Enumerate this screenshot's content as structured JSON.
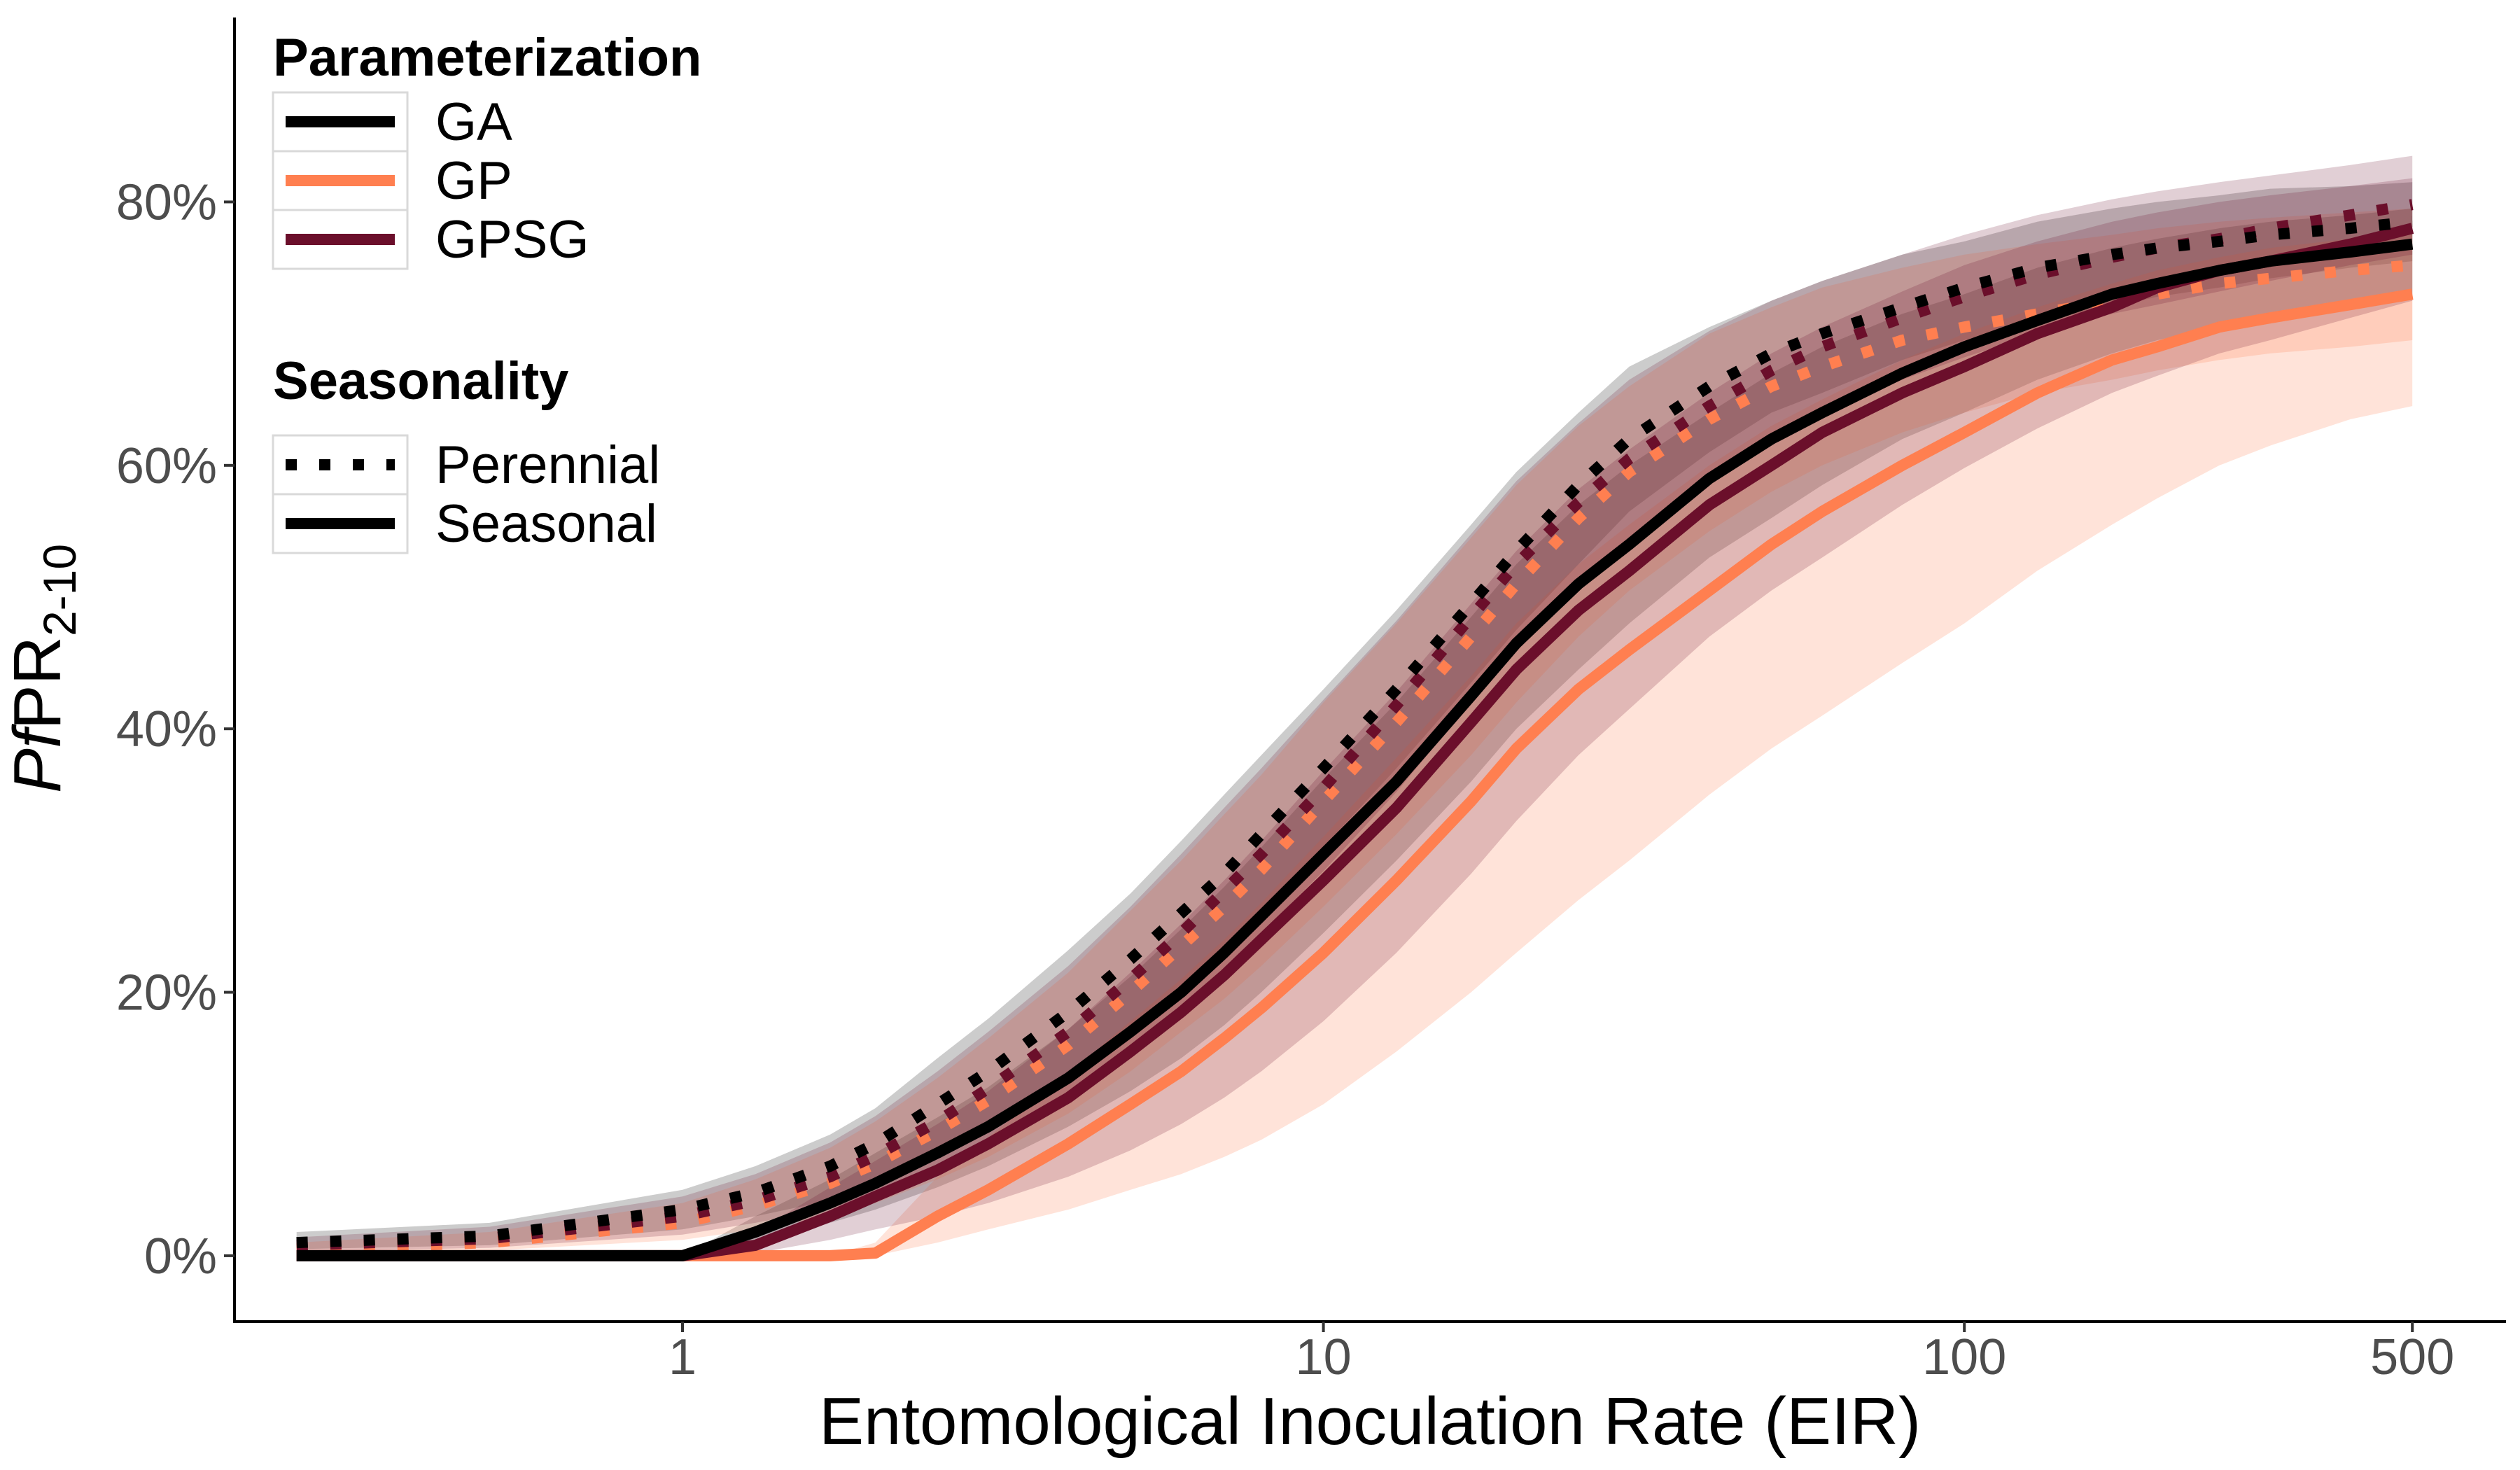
{
  "chart_data": {
    "type": "line",
    "xlabel": "Entomological Inoculation Rate (EIR)",
    "ylabel": {
      "prefix": "Pf",
      "main": "PR",
      "subscript": "2-10"
    },
    "x_scale": "log",
    "xlim": [
      0.2,
      700
    ],
    "ylim": [
      -0.05,
      0.94
    ],
    "x_ticks": [
      1,
      10,
      100,
      500
    ],
    "x_tick_labels": [
      "1",
      "10",
      "100",
      "500"
    ],
    "y_ticks": [
      0,
      0.2,
      0.4,
      0.6,
      0.8
    ],
    "y_tick_labels": [
      "0%",
      "20%",
      "40%",
      "60%",
      "80%"
    ],
    "grid": false,
    "legend_position": "top-left",
    "legends": [
      {
        "title": "Parameterization",
        "entries": [
          "GA",
          "GP",
          "GPSG"
        ]
      },
      {
        "title": "Seasonality",
        "entries": [
          "Perennial",
          "Seasonal"
        ]
      }
    ],
    "colors": {
      "GA": "#000000",
      "GP": "#ff7f50",
      "GPSG": "#6b0f2b"
    },
    "x": [
      0.25,
      0.5,
      1,
      1.3,
      1.7,
      2,
      2.5,
      3,
      4,
      5,
      6,
      7,
      8,
      10,
      13,
      17,
      20,
      25,
      30,
      40,
      50,
      60,
      80,
      100,
      130,
      170,
      200,
      250,
      300,
      400,
      500
    ],
    "series": [
      {
        "name": "GA",
        "seasonality": "Perennial",
        "values": [
          0.01,
          0.015,
          0.035,
          0.048,
          0.068,
          0.085,
          0.115,
          0.14,
          0.185,
          0.225,
          0.26,
          0.29,
          0.32,
          0.37,
          0.43,
          0.495,
          0.535,
          0.585,
          0.62,
          0.66,
          0.685,
          0.7,
          0.72,
          0.735,
          0.75,
          0.76,
          0.765,
          0.77,
          0.775,
          0.78,
          0.785
        ],
        "lower": [
          0.005,
          0.008,
          0.02,
          0.03,
          0.042,
          0.055,
          0.08,
          0.1,
          0.14,
          0.175,
          0.205,
          0.235,
          0.262,
          0.31,
          0.37,
          0.435,
          0.475,
          0.525,
          0.565,
          0.61,
          0.64,
          0.655,
          0.68,
          0.695,
          0.71,
          0.72,
          0.728,
          0.735,
          0.742,
          0.75,
          0.755
        ],
        "upper": [
          0.018,
          0.025,
          0.05,
          0.068,
          0.092,
          0.112,
          0.15,
          0.18,
          0.232,
          0.275,
          0.315,
          0.35,
          0.38,
          0.43,
          0.49,
          0.555,
          0.595,
          0.64,
          0.675,
          0.705,
          0.725,
          0.74,
          0.76,
          0.77,
          0.785,
          0.795,
          0.8,
          0.805,
          0.81,
          0.812,
          0.815
        ]
      },
      {
        "name": "GA",
        "seasonality": "Seasonal",
        "values": [
          0,
          0,
          0,
          0.018,
          0.04,
          0.055,
          0.078,
          0.098,
          0.135,
          0.17,
          0.2,
          0.23,
          0.258,
          0.305,
          0.36,
          0.425,
          0.465,
          0.51,
          0.54,
          0.59,
          0.62,
          0.64,
          0.67,
          0.69,
          0.71,
          0.73,
          0.738,
          0.748,
          0.755,
          0.762,
          0.768
        ],
        "lower": [
          0,
          0,
          0,
          0.008,
          0.025,
          0.035,
          0.052,
          0.068,
          0.098,
          0.125,
          0.15,
          0.175,
          0.2,
          0.245,
          0.3,
          0.36,
          0.4,
          0.445,
          0.48,
          0.53,
          0.56,
          0.585,
          0.62,
          0.64,
          0.665,
          0.685,
          0.695,
          0.705,
          0.715,
          0.725,
          0.73
        ],
        "upper": [
          0,
          0,
          0,
          0.03,
          0.058,
          0.078,
          0.105,
          0.128,
          0.172,
          0.212,
          0.248,
          0.28,
          0.31,
          0.362,
          0.42,
          0.485,
          0.525,
          0.57,
          0.6,
          0.64,
          0.67,
          0.69,
          0.715,
          0.73,
          0.75,
          0.765,
          0.772,
          0.78,
          0.785,
          0.79,
          0.795
        ]
      },
      {
        "name": "GP",
        "seasonality": "Perennial",
        "values": [
          0.005,
          0.01,
          0.025,
          0.038,
          0.055,
          0.07,
          0.095,
          0.118,
          0.16,
          0.2,
          0.235,
          0.265,
          0.293,
          0.345,
          0.405,
          0.47,
          0.51,
          0.56,
          0.595,
          0.635,
          0.66,
          0.675,
          0.695,
          0.705,
          0.715,
          0.725,
          0.73,
          0.738,
          0.742,
          0.748,
          0.752
        ],
        "lower": [
          0.002,
          0.004,
          0.012,
          0.02,
          0.03,
          0.04,
          0.058,
          0.075,
          0.108,
          0.14,
          0.17,
          0.195,
          0.22,
          0.265,
          0.32,
          0.38,
          0.42,
          0.47,
          0.505,
          0.55,
          0.58,
          0.6,
          0.625,
          0.64,
          0.655,
          0.665,
          0.672,
          0.68,
          0.685,
          0.69,
          0.695
        ],
        "upper": [
          0.01,
          0.018,
          0.04,
          0.058,
          0.082,
          0.102,
          0.135,
          0.165,
          0.215,
          0.262,
          0.3,
          0.335,
          0.365,
          0.42,
          0.48,
          0.545,
          0.585,
          0.63,
          0.66,
          0.7,
          0.72,
          0.735,
          0.75,
          0.76,
          0.768,
          0.775,
          0.78,
          0.785,
          0.788,
          0.792,
          0.795
        ]
      },
      {
        "name": "GP",
        "seasonality": "Seasonal",
        "values": [
          0,
          0,
          0,
          0,
          0,
          0.002,
          0.03,
          0.05,
          0.085,
          0.115,
          0.14,
          0.165,
          0.188,
          0.23,
          0.285,
          0.345,
          0.385,
          0.43,
          0.46,
          0.505,
          0.54,
          0.565,
          0.6,
          0.625,
          0.655,
          0.68,
          0.69,
          0.705,
          0.712,
          0.722,
          0.73
        ],
        "lower": [
          0,
          0,
          0,
          0,
          0,
          0,
          0.01,
          0.02,
          0.035,
          0.05,
          0.062,
          0.075,
          0.088,
          0.115,
          0.155,
          0.2,
          0.23,
          0.27,
          0.3,
          0.35,
          0.385,
          0.41,
          0.45,
          0.48,
          0.52,
          0.555,
          0.575,
          0.6,
          0.615,
          0.635,
          0.645
        ],
        "upper": [
          0,
          0,
          0,
          0,
          0,
          0.01,
          0.06,
          0.09,
          0.138,
          0.178,
          0.21,
          0.24,
          0.268,
          0.318,
          0.378,
          0.44,
          0.48,
          0.525,
          0.555,
          0.6,
          0.63,
          0.65,
          0.68,
          0.7,
          0.72,
          0.738,
          0.748,
          0.758,
          0.765,
          0.772,
          0.778
        ]
      },
      {
        "name": "GPSG",
        "seasonality": "Perennial",
        "values": [
          0.008,
          0.013,
          0.03,
          0.042,
          0.06,
          0.076,
          0.102,
          0.127,
          0.17,
          0.21,
          0.245,
          0.277,
          0.305,
          0.355,
          0.418,
          0.485,
          0.525,
          0.572,
          0.605,
          0.645,
          0.672,
          0.69,
          0.712,
          0.728,
          0.745,
          0.758,
          0.765,
          0.772,
          0.78,
          0.79,
          0.798
        ],
        "lower": [
          0.003,
          0.006,
          0.016,
          0.025,
          0.036,
          0.047,
          0.068,
          0.088,
          0.125,
          0.16,
          0.19,
          0.218,
          0.245,
          0.292,
          0.352,
          0.42,
          0.46,
          0.51,
          0.545,
          0.592,
          0.622,
          0.64,
          0.665,
          0.682,
          0.7,
          0.715,
          0.722,
          0.732,
          0.74,
          0.752,
          0.76
        ],
        "upper": [
          0.014,
          0.022,
          0.045,
          0.062,
          0.086,
          0.106,
          0.14,
          0.17,
          0.22,
          0.265,
          0.305,
          0.34,
          0.37,
          0.422,
          0.482,
          0.548,
          0.588,
          0.632,
          0.665,
          0.702,
          0.725,
          0.74,
          0.76,
          0.775,
          0.79,
          0.802,
          0.808,
          0.815,
          0.82,
          0.828,
          0.835
        ]
      },
      {
        "name": "GPSG",
        "seasonality": "Seasonal",
        "values": [
          0,
          0,
          0,
          0.008,
          0.03,
          0.045,
          0.065,
          0.085,
          0.12,
          0.155,
          0.185,
          0.213,
          0.24,
          0.285,
          0.34,
          0.405,
          0.445,
          0.49,
          0.52,
          0.57,
          0.6,
          0.625,
          0.655,
          0.675,
          0.7,
          0.72,
          0.735,
          0.748,
          0.755,
          0.768,
          0.78
        ],
        "lower": [
          0,
          0,
          0,
          0.002,
          0.012,
          0.02,
          0.03,
          0.04,
          0.06,
          0.08,
          0.1,
          0.12,
          0.14,
          0.178,
          0.23,
          0.29,
          0.33,
          0.38,
          0.415,
          0.47,
          0.505,
          0.53,
          0.57,
          0.598,
          0.628,
          0.655,
          0.668,
          0.685,
          0.695,
          0.712,
          0.725
        ],
        "upper": [
          0,
          0,
          0,
          0.018,
          0.052,
          0.072,
          0.1,
          0.125,
          0.172,
          0.215,
          0.252,
          0.285,
          0.315,
          0.368,
          0.428,
          0.495,
          0.535,
          0.582,
          0.612,
          0.655,
          0.685,
          0.705,
          0.732,
          0.752,
          0.77,
          0.785,
          0.792,
          0.8,
          0.805,
          0.812,
          0.818
        ]
      }
    ]
  }
}
